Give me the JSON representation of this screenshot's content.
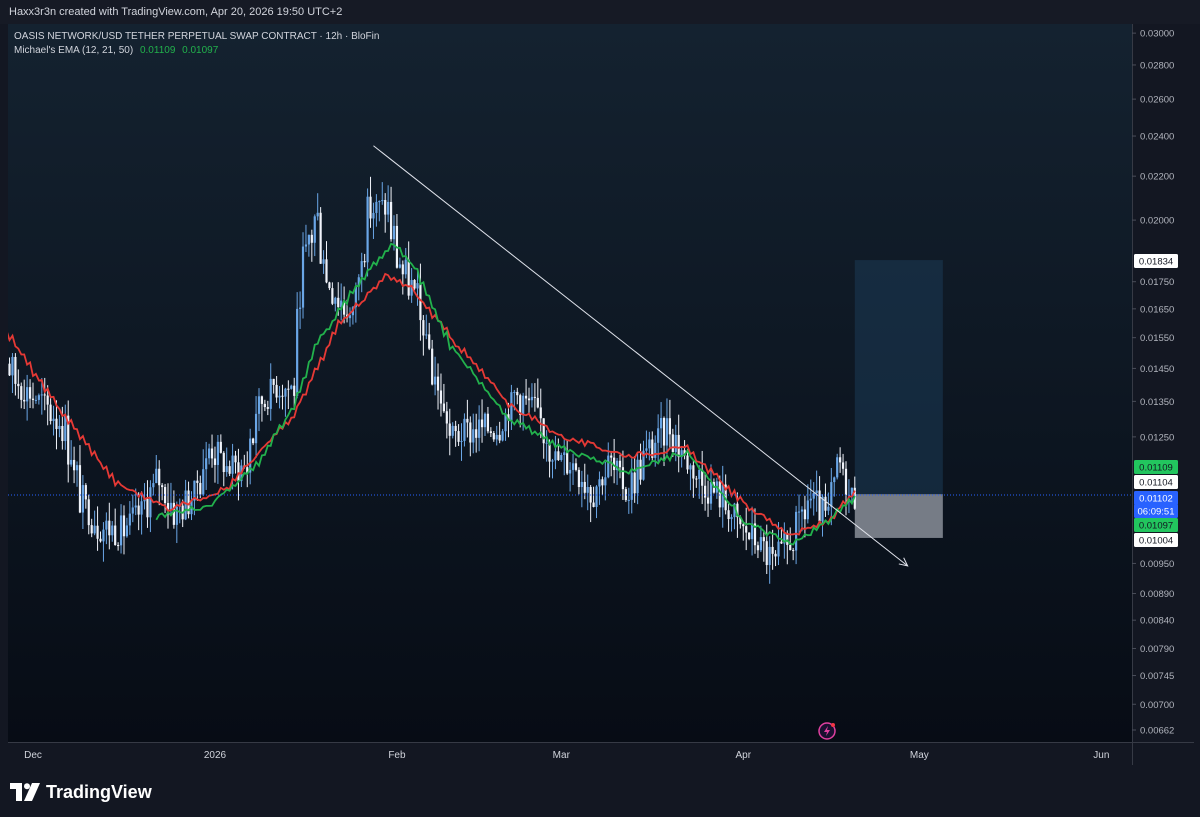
{
  "header": {
    "created_text": "Haxx3r3n created with TradingView.com, Apr 20, 2026 19:50 UTC+2"
  },
  "legend": {
    "symbol_line": "OASIS NETWORK/USD TETHER PERPETUAL SWAP CONTRACT · 12h · BloFin",
    "indicator_name": "Michael's EMA (12, 21, 50)",
    "ema_value_1": "0.01109",
    "ema_value_2": "0.01097"
  },
  "brand": {
    "name": "TradingView"
  },
  "colors": {
    "background": "#131722",
    "chart_bg_top": "#142230",
    "chart_bg_bottom": "#080d16",
    "up_candle": "#6aa6e6",
    "down_candle": "#f0f3fa",
    "ema_fast": "#22b14c",
    "ema_slow": "#e53935",
    "trendline": "#e0e3eb",
    "target_zone": "#1c3a55",
    "stop_zone": "#8a8f99",
    "label_green": "#22c55e",
    "label_blue": "#2962ff"
  },
  "chart_data": {
    "type": "candlestick",
    "title": "OASIS NETWORK/USD TETHER PERPETUAL SWAP CONTRACT · 12h · BloFin",
    "interval": "12h",
    "x_ticks": [
      "Dec",
      "2026",
      "Feb",
      "Mar",
      "Apr",
      "May",
      "Jun"
    ],
    "y_ticks": [
      "0.03000",
      "0.02800",
      "0.02600",
      "0.02400",
      "0.02200",
      "0.02000",
      "0.01750",
      "0.01650",
      "0.01550",
      "0.01450",
      "0.01350",
      "0.01250",
      "0.00950",
      "0.00890",
      "0.00840",
      "0.00790",
      "0.00745",
      "0.00700",
      "0.00662"
    ],
    "y_scale": "log",
    "ylim": [
      0.00645,
      0.0306
    ],
    "close_path": [
      [
        "2025-11-24",
        0.0157
      ],
      [
        "2025-11-28",
        0.0141
      ],
      [
        "2025-12-02",
        0.0135
      ],
      [
        "2025-12-06",
        0.0128
      ],
      [
        "2025-12-09",
        0.0109
      ],
      [
        "2025-12-12",
        0.0103
      ],
      [
        "2025-12-16",
        0.0102
      ],
      [
        "2025-12-19",
        0.0106
      ],
      [
        "2025-12-22",
        0.0114
      ],
      [
        "2025-12-25",
        0.0106
      ],
      [
        "2025-12-28",
        0.011
      ],
      [
        "2025-12-31",
        0.0122
      ],
      [
        "2026-01-03",
        0.0117
      ],
      [
        "2026-01-06",
        0.0117
      ],
      [
        "2026-01-08",
        0.0133
      ],
      [
        "2026-01-11",
        0.014
      ],
      [
        "2026-01-14",
        0.0139
      ],
      [
        "2026-01-16",
        0.0185
      ],
      [
        "2026-01-18",
        0.0201
      ],
      [
        "2026-01-20",
        0.0175
      ],
      [
        "2026-01-24",
        0.0162
      ],
      [
        "2026-01-27",
        0.0204
      ],
      [
        "2026-01-30",
        0.0206
      ],
      [
        "2026-02-01",
        0.0183
      ],
      [
        "2026-02-04",
        0.0169
      ],
      [
        "2026-02-07",
        0.0143
      ],
      [
        "2026-02-10",
        0.0125
      ],
      [
        "2026-02-14",
        0.0127
      ],
      [
        "2026-02-18",
        0.0128
      ],
      [
        "2026-02-21",
        0.0137
      ],
      [
        "2026-02-24",
        0.0133
      ],
      [
        "2026-02-28",
        0.0119
      ],
      [
        "2026-03-03",
        0.0118
      ],
      [
        "2026-03-06",
        0.0111
      ],
      [
        "2026-03-09",
        0.0118
      ],
      [
        "2026-03-12",
        0.0111
      ],
      [
        "2026-03-15",
        0.012
      ],
      [
        "2026-03-19",
        0.0128
      ],
      [
        "2026-03-22",
        0.0119
      ],
      [
        "2026-03-25",
        0.0113
      ],
      [
        "2026-03-28",
        0.011
      ],
      [
        "2026-03-31",
        0.0103
      ],
      [
        "2026-04-03",
        0.01
      ],
      [
        "2026-04-06",
        0.0095
      ],
      [
        "2026-04-09",
        0.01
      ],
      [
        "2026-04-12",
        0.0109
      ],
      [
        "2026-04-15",
        0.0105
      ],
      [
        "2026-04-17",
        0.0118
      ],
      [
        "2026-04-19",
        0.011
      ],
      [
        "2026-04-20",
        0.011
      ]
    ],
    "ema_fast_path": [
      [
        "2025-12-22",
        0.0105
      ],
      [
        "2025-12-31",
        0.0108
      ],
      [
        "2026-01-08",
        0.0118
      ],
      [
        "2026-01-14",
        0.0133
      ],
      [
        "2026-01-18",
        0.0153
      ],
      [
        "2026-01-27",
        0.018
      ],
      [
        "2026-01-31",
        0.019
      ],
      [
        "2026-02-04",
        0.018
      ],
      [
        "2026-02-10",
        0.0152
      ],
      [
        "2026-02-20",
        0.013
      ],
      [
        "2026-03-01",
        0.0122
      ],
      [
        "2026-03-12",
        0.0116
      ],
      [
        "2026-03-22",
        0.0121
      ],
      [
        "2026-04-01",
        0.0104
      ],
      [
        "2026-04-09",
        0.0099
      ],
      [
        "2026-04-15",
        0.0104
      ],
      [
        "2026-04-20",
        0.01097
      ]
    ],
    "ema_slow_path": [
      [
        "2025-11-24",
        0.0164
      ],
      [
        "2025-12-03",
        0.0138
      ],
      [
        "2025-12-15",
        0.0113
      ],
      [
        "2025-12-24",
        0.0107
      ],
      [
        "2026-01-03",
        0.0112
      ],
      [
        "2026-01-14",
        0.0131
      ],
      [
        "2026-01-22",
        0.016
      ],
      [
        "2026-01-30",
        0.0177
      ],
      [
        "2026-02-03",
        0.0173
      ],
      [
        "2026-02-10",
        0.0155
      ],
      [
        "2026-02-20",
        0.0134
      ],
      [
        "2026-03-01",
        0.0125
      ],
      [
        "2026-03-12",
        0.012
      ],
      [
        "2026-03-22",
        0.0122
      ],
      [
        "2026-04-01",
        0.0108
      ],
      [
        "2026-04-09",
        0.0101
      ],
      [
        "2026-04-15",
        0.0104
      ],
      [
        "2026-04-20",
        0.01109
      ]
    ],
    "trendline": {
      "start": [
        "2026-01-28",
        0.0235
      ],
      "end": [
        "2026-04-29",
        0.00945
      ]
    },
    "long_position": {
      "entry": "0.01104",
      "target": "0.01834",
      "stop": "0.01004",
      "start_date": "2026-04-20",
      "end_date": "2026-05-05"
    },
    "price_labels": [
      {
        "text": "0.01834",
        "value": 0.01834,
        "style": "white"
      },
      {
        "text": "0.01109",
        "value": 0.01109,
        "style": "green"
      },
      {
        "text": "0.01104",
        "value": 0.01104,
        "style": "white"
      },
      {
        "text": "0.01102",
        "value": 0.01102,
        "style": "blue"
      },
      {
        "text": "06:09:51",
        "value": 0.01102,
        "style": "blue-sub"
      },
      {
        "text": "0.01097",
        "value": 0.01097,
        "style": "green"
      },
      {
        "text": "0.01004",
        "value": 0.01004,
        "style": "white"
      }
    ],
    "last_price": 0.01102
  }
}
